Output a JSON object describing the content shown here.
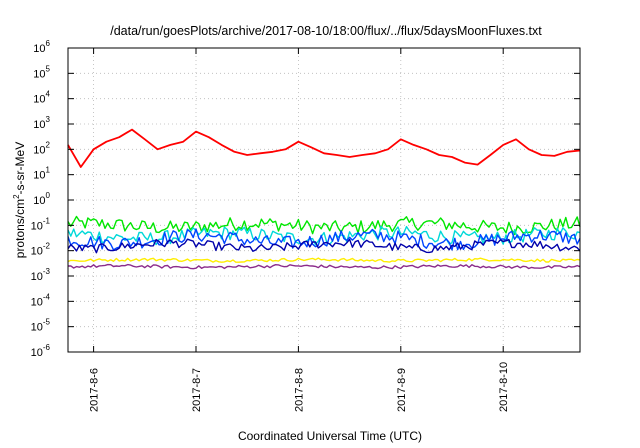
{
  "chart_data": {
    "type": "line",
    "title": "/data/run/goesPlots/archive/2017-08-10/18:00/flux/../flux/5daysMoonFluxes.txt",
    "xlabel": "Coordinated Universal Time (UTC)",
    "ylabel": "protons/cm2-s-sr-MeV",
    "ylabel_parts": {
      "pre": "protons/cm",
      "sup": "2",
      "post": "-s-sr-MeV"
    },
    "yscale": "log",
    "ylim": [
      1e-06,
      1000000.0
    ],
    "yticks": [
      {
        "base": "10",
        "exp": "-6"
      },
      {
        "base": "10",
        "exp": "-5"
      },
      {
        "base": "10",
        "exp": "-4"
      },
      {
        "base": "10",
        "exp": "-3"
      },
      {
        "base": "10",
        "exp": "-2"
      },
      {
        "base": "10",
        "exp": "-1"
      },
      {
        "base": "10",
        "exp": "0"
      },
      {
        "base": "10",
        "exp": "1"
      },
      {
        "base": "10",
        "exp": "2"
      },
      {
        "base": "10",
        "exp": "3"
      },
      {
        "base": "10",
        "exp": "4"
      },
      {
        "base": "10",
        "exp": "5"
      },
      {
        "base": "10",
        "exp": "6"
      }
    ],
    "xlim": [
      "2017-08-05T18:00",
      "2017-08-10T18:00"
    ],
    "xticks": [
      "2017-8-6",
      "2017-8-7",
      "2017-8-8",
      "2017-8-9",
      "2017-8-10"
    ],
    "grid": true,
    "series": [
      {
        "color": "#ff0000",
        "x": [
          "2017-08-05T18:00",
          "2017-08-05T21:00",
          "2017-08-06T00:00",
          "2017-08-06T03:00",
          "2017-08-06T06:00",
          "2017-08-06T09:00",
          "2017-08-06T12:00",
          "2017-08-06T15:00",
          "2017-08-06T18:00",
          "2017-08-06T21:00",
          "2017-08-07T00:00",
          "2017-08-07T03:00",
          "2017-08-07T06:00",
          "2017-08-07T09:00",
          "2017-08-07T12:00",
          "2017-08-07T15:00",
          "2017-08-07T18:00",
          "2017-08-07T21:00",
          "2017-08-08T00:00",
          "2017-08-08T03:00",
          "2017-08-08T06:00",
          "2017-08-08T09:00",
          "2017-08-08T12:00",
          "2017-08-08T15:00",
          "2017-08-08T18:00",
          "2017-08-08T21:00",
          "2017-08-09T00:00",
          "2017-08-09T03:00",
          "2017-08-09T06:00",
          "2017-08-09T09:00",
          "2017-08-09T12:00",
          "2017-08-09T15:00",
          "2017-08-09T18:00",
          "2017-08-09T21:00",
          "2017-08-10T00:00",
          "2017-08-10T03:00",
          "2017-08-10T06:00",
          "2017-08-10T09:00",
          "2017-08-10T12:00",
          "2017-08-10T15:00",
          "2017-08-10T18:00"
        ],
        "values": [
          150,
          20,
          100,
          200,
          300,
          600,
          250,
          100,
          150,
          200,
          500,
          300,
          150,
          80,
          60,
          70,
          80,
          100,
          200,
          120,
          70,
          60,
          50,
          60,
          70,
          100,
          250,
          150,
          100,
          60,
          50,
          30,
          25,
          60,
          150,
          250,
          100,
          60,
          55,
          80,
          90
        ]
      },
      {
        "color": "#00e600",
        "values": [
          0.08,
          0.12
        ],
        "noise": "high"
      },
      {
        "color": "#00d8d8",
        "values": [
          0.03,
          0.05
        ],
        "noise": "high"
      },
      {
        "color": "#0044ff",
        "values": [
          0.02,
          0.04
        ],
        "noise": "high"
      },
      {
        "color": "#0000aa",
        "values": [
          0.012,
          0.02
        ],
        "noise": "medium"
      },
      {
        "color": "#ffee00",
        "values": [
          0.004,
          0.0045
        ],
        "noise": "low"
      },
      {
        "color": "#8b2c8b",
        "values": [
          0.0022,
          0.0025
        ],
        "noise": "low"
      }
    ]
  }
}
